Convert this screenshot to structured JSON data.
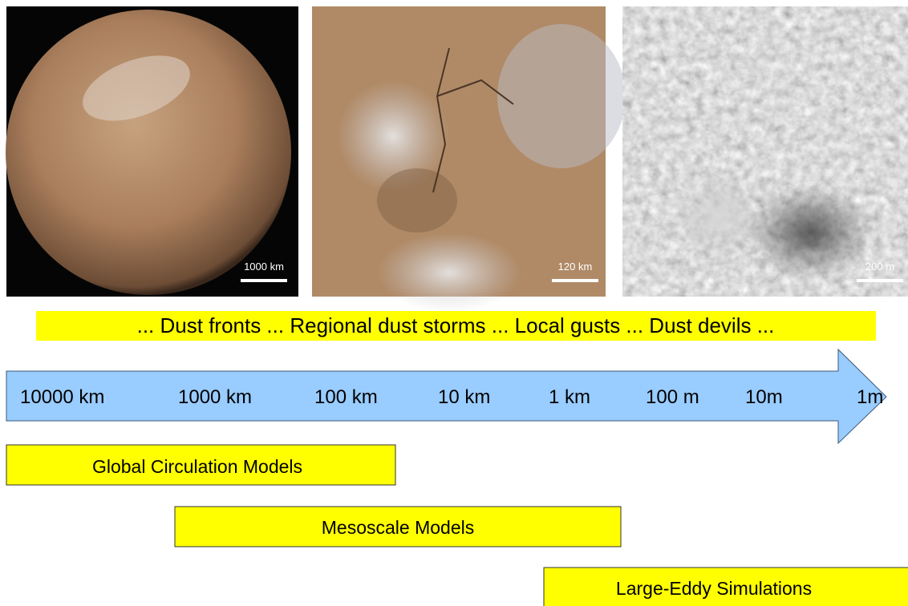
{
  "images": [
    {
      "scale_label": "1000 km"
    },
    {
      "scale_label": "120 km"
    },
    {
      "scale_label": "200 m"
    }
  ],
  "banner": "... Dust fronts ... Regional dust storms ... Local gusts ... Dust devils ...",
  "scale": [
    "10000 km",
    "1000 km",
    "100 km",
    "10 km",
    "1 km",
    "100 m",
    "10m",
    "1m"
  ],
  "models": [
    "Global Circulation Models",
    "Mesoscale Models",
    "Large-Eddy Simulations"
  ]
}
